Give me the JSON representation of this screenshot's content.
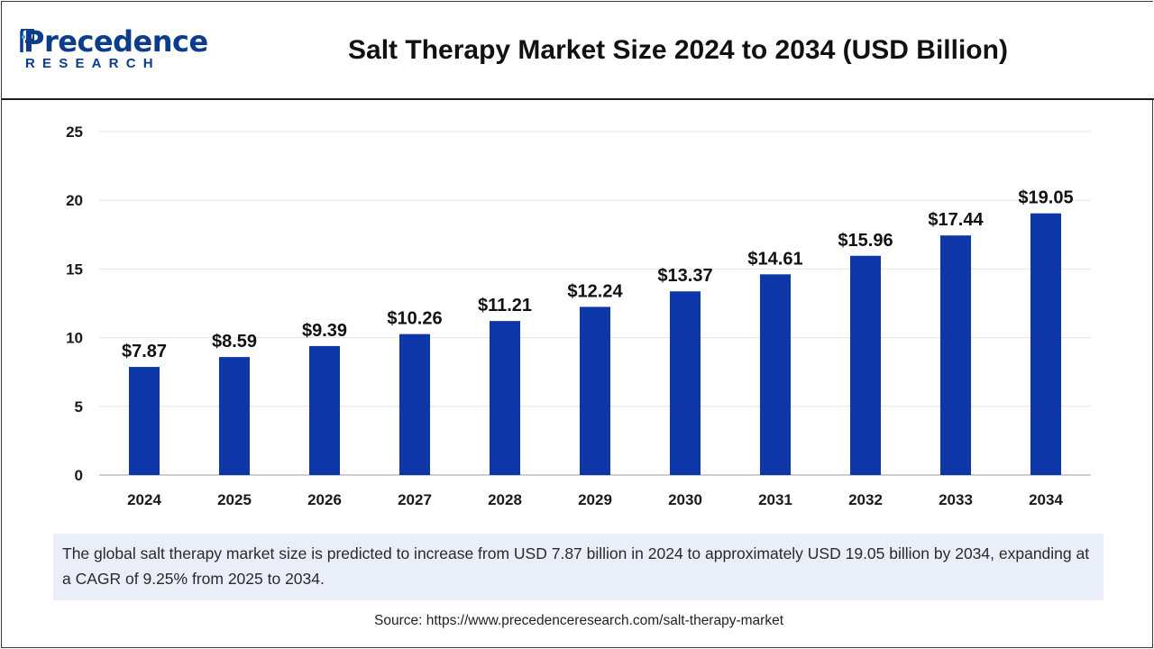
{
  "brand": {
    "name": "Precedence",
    "sub": "RESEARCH",
    "color": "#0c3c8c"
  },
  "chart_data": {
    "type": "bar",
    "title": "Salt Therapy Market Size 2024 to 2034 (USD Billion)",
    "categories": [
      "2024",
      "2025",
      "2026",
      "2027",
      "2028",
      "2029",
      "2030",
      "2031",
      "2032",
      "2033",
      "2034"
    ],
    "values": [
      7.87,
      8.59,
      9.39,
      10.26,
      11.21,
      12.24,
      13.37,
      14.61,
      15.96,
      17.44,
      19.05
    ],
    "labels": [
      "$7.87",
      "$8.59",
      "$9.39",
      "$10.26",
      "$11.21",
      "$12.24",
      "$13.37",
      "$14.61",
      "$15.96",
      "$17.44",
      "$19.05"
    ],
    "ylim": [
      0,
      25
    ],
    "yticks": [
      0,
      5,
      10,
      15,
      20,
      25
    ],
    "grid": true,
    "bar_color": "#0d36a8",
    "xlabel": "",
    "ylabel": ""
  },
  "caption": "The global salt therapy market size is predicted to increase from USD 7.87 billion in 2024 to approximately USD 19.05 billion by 2034, expanding at a CAGR of 9.25% from 2025 to 2034.",
  "source": "Source: https://www.precedenceresearch.com/salt-therapy-market"
}
